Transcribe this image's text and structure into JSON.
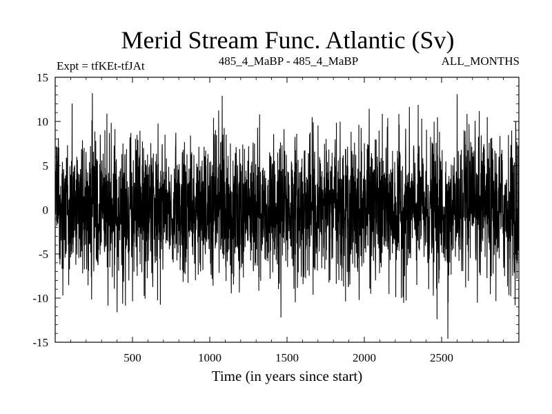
{
  "chart_data": {
    "type": "line",
    "title": "Merid Stream Func. Atlantic (Sv)",
    "subtitle_left": "Expt = tfKEt-tfJAt",
    "subtitle_center": "485_4_MaBP - 485_4_MaBP",
    "subtitle_right": "ALL_MONTHS",
    "xlabel": "Time (in years since start)",
    "ylabel": "",
    "xlim": [
      0,
      3000
    ],
    "ylim": [
      -15,
      15
    ],
    "xticks": [
      500,
      1000,
      1500,
      2000,
      2500
    ],
    "yticks": [
      15,
      10,
      5,
      0,
      -5,
      -10,
      -15
    ],
    "grid": false,
    "series": [
      {
        "color": "#000000",
        "n_points": 3000,
        "mean": 0.0,
        "std_dev": 4.0,
        "peaks": [
          {
            "x": 240,
            "y": 13.2
          },
          {
            "x": 1080,
            "y": 12.9
          },
          {
            "x": 2600,
            "y": 13.1
          },
          {
            "x": 400,
            "y": -11.6
          },
          {
            "x": 1460,
            "y": -12.2
          },
          {
            "x": 2470,
            "y": -12.4
          },
          {
            "x": 2540,
            "y": -14.6
          }
        ]
      }
    ]
  }
}
